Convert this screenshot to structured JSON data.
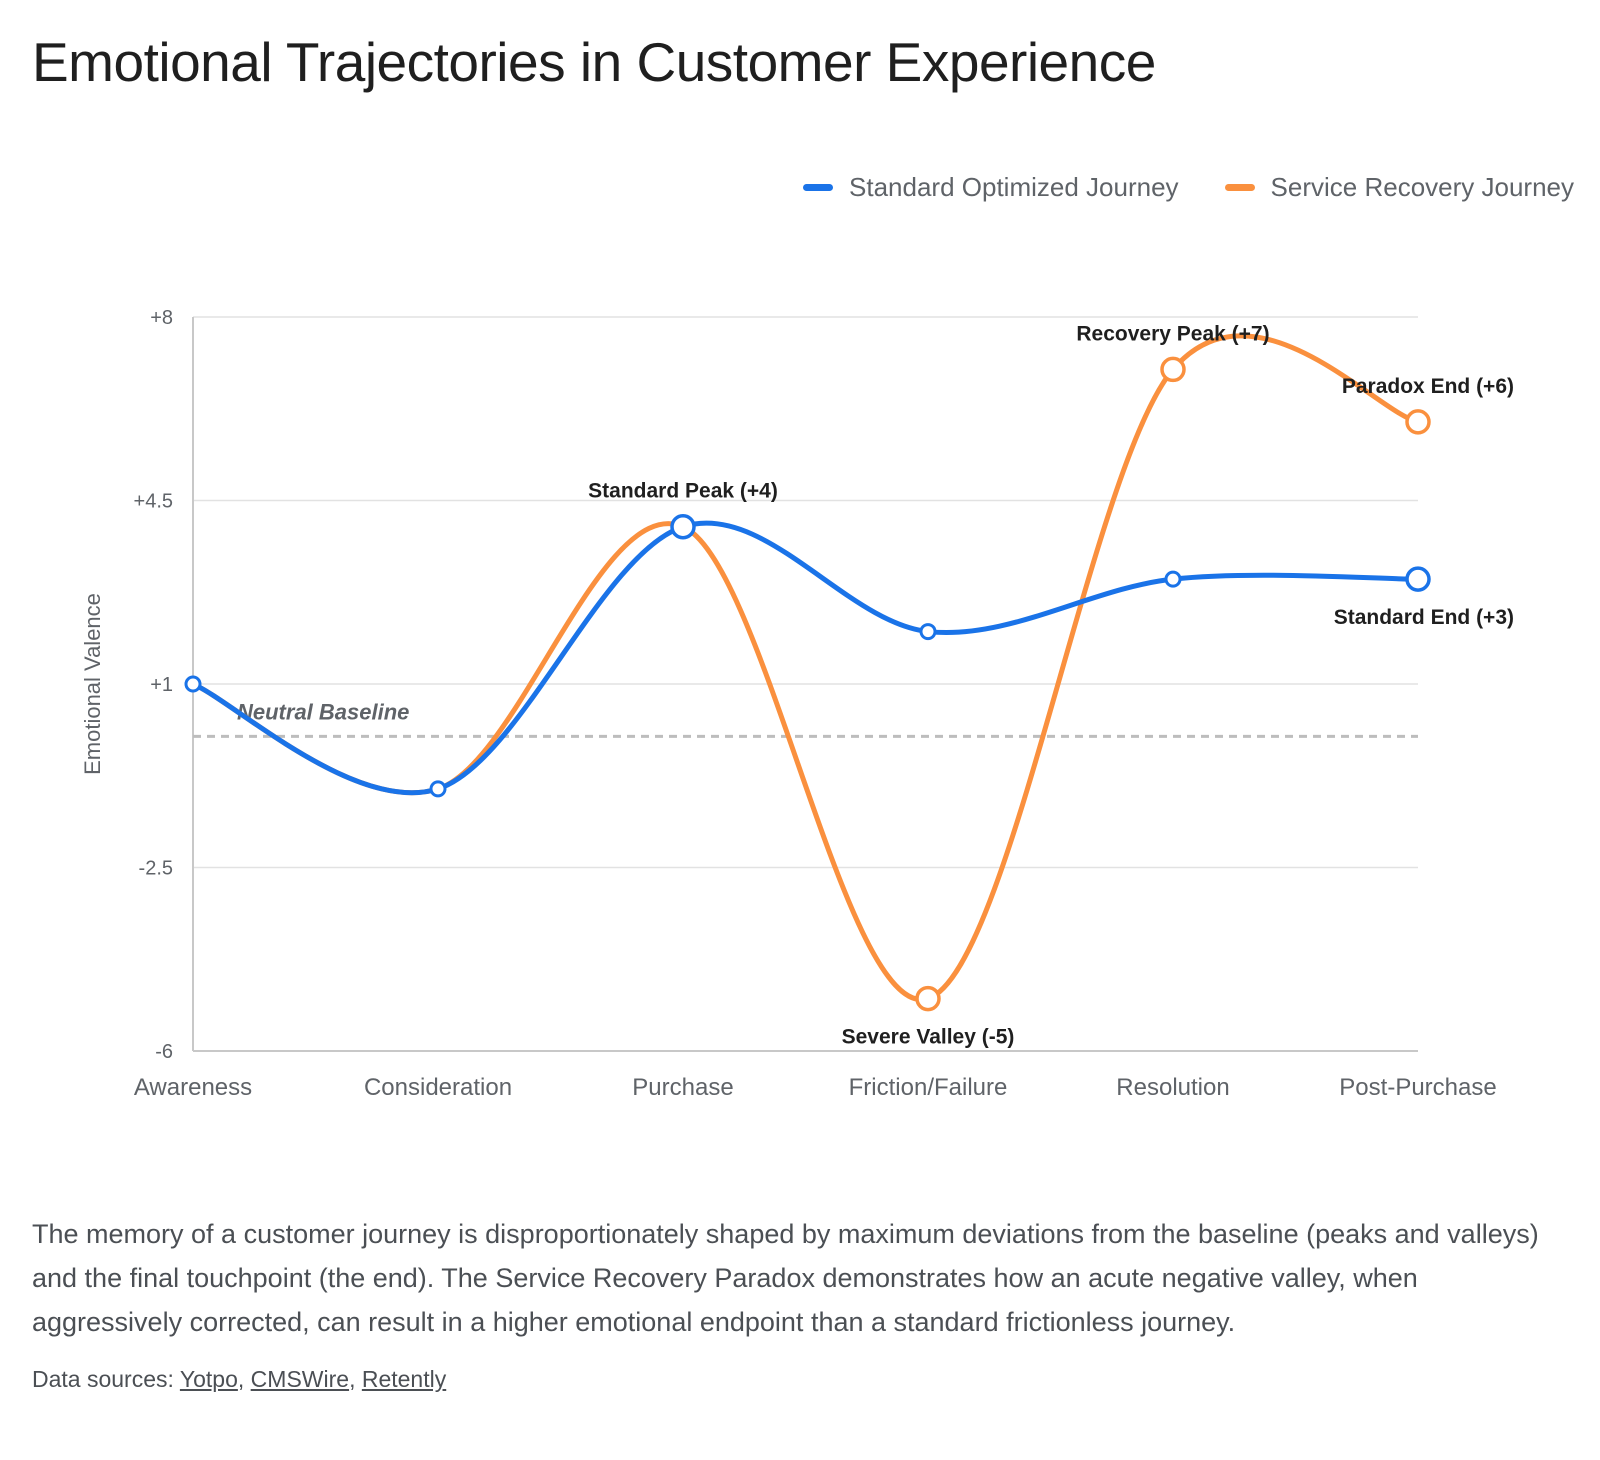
{
  "page": {
    "title": "Emotional Trajectories in Customer Experience",
    "description": "The memory of a customer journey is disproportionately shaped by maximum deviations from the baseline (peaks and valleys) and the final touchpoint (the end). The Service Recovery Paradox demonstrates how an acute negative valley, when aggressively corrected, can result in a higher emotional endpoint than a standard frictionless journey.",
    "sources_label": "Data sources:",
    "sources": [
      "Yotpo",
      "CMSWire",
      "Retently"
    ]
  },
  "chart_data": {
    "type": "line",
    "title": "Emotional Trajectories in Customer Experience",
    "xlabel": "",
    "ylabel": "Emotional Valence",
    "categories": [
      "Awareness",
      "Consideration",
      "Purchase",
      "Friction/Failure",
      "Resolution",
      "Post-Purchase"
    ],
    "ylim": [
      -6,
      8
    ],
    "yticks": [
      -6,
      -2.5,
      1,
      4.5,
      8
    ],
    "ytick_labels": [
      "-6",
      "-2.5",
      "+1",
      "+4.5",
      "+8"
    ],
    "grid": true,
    "legend_position": "top-right",
    "series": [
      {
        "name": "Standard Optimized Journey",
        "color": "#1a73e8",
        "values": [
          1,
          -1,
          4,
          2,
          3,
          3
        ]
      },
      {
        "name": "Service Recovery Journey",
        "color": "#fa903e",
        "values": [
          1,
          -1,
          4,
          -5,
          7,
          6
        ]
      }
    ],
    "baseline": {
      "label": "Neutral Baseline",
      "value": 0
    },
    "annotations": [
      {
        "text": "Standard Peak (+4)",
        "series": 0,
        "index": 2,
        "placement": "above"
      },
      {
        "text": "Standard End (+3)",
        "series": 0,
        "index": 5,
        "placement": "below"
      },
      {
        "text": "Severe Valley (-5)",
        "series": 1,
        "index": 3,
        "placement": "below"
      },
      {
        "text": "Recovery Peak (+7)",
        "series": 1,
        "index": 4,
        "placement": "above"
      },
      {
        "text": "Paradox End (+6)",
        "series": 1,
        "index": 5,
        "placement": "above"
      }
    ],
    "highlighted_points": [
      {
        "series": 0,
        "index": 2
      },
      {
        "series": 0,
        "index": 5
      },
      {
        "series": 1,
        "index": 3
      },
      {
        "series": 1,
        "index": 4
      },
      {
        "series": 1,
        "index": 5
      }
    ]
  }
}
